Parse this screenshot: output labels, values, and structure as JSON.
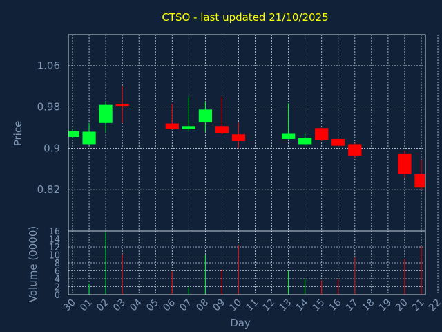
{
  "chart_data": {
    "type": "candlestick",
    "title": "CTSO - last updated 21/10/2025",
    "xlabel": "Day",
    "ylabel": "Price",
    "volume_label": "Volume (0000)",
    "x_tick_labels": [
      "30",
      "01",
      "02",
      "03",
      "04",
      "05",
      "06",
      "07",
      "08",
      "09",
      "10",
      "11",
      "12",
      "13",
      "14",
      "15",
      "16",
      "17",
      "18",
      "19",
      "20",
      "21",
      "22"
    ],
    "price_ticks": [
      0.82,
      0.9,
      0.98,
      1.06
    ],
    "price_tick_labels": [
      "0.82",
      "0.9",
      "0.98",
      "1.06"
    ],
    "price_range": [
      0.74,
      1.12
    ],
    "volume_ticks": [
      0,
      2,
      4,
      6,
      8,
      10,
      12,
      14,
      16
    ],
    "volume_range": [
      0,
      16
    ],
    "grid": true,
    "up_color": "#00ff33",
    "down_color": "#ff0000",
    "candles": [
      {
        "day": "30",
        "open": 0.922,
        "high": 0.935,
        "low": 0.92,
        "close": 0.933,
        "volume": 0.0
      },
      {
        "day": "01",
        "open": 0.908,
        "high": 0.949,
        "low": 0.906,
        "close": 0.932,
        "volume": 2.8
      },
      {
        "day": "02",
        "open": 0.949,
        "high": 0.99,
        "low": 0.931,
        "close": 0.984,
        "volume": 15.6
      },
      {
        "day": "03",
        "open": 0.986,
        "high": 1.02,
        "low": 0.949,
        "close": 0.982,
        "volume": 10.2
      },
      {
        "day": "06",
        "open": 0.948,
        "high": 0.986,
        "low": 0.936,
        "close": 0.937,
        "volume": 5.8
      },
      {
        "day": "07",
        "open": 0.937,
        "high": 1.0,
        "low": 0.934,
        "close": 0.943,
        "volume": 1.9
      },
      {
        "day": "08",
        "open": 0.95,
        "high": 0.99,
        "low": 0.932,
        "close": 0.975,
        "volume": 10.1
      },
      {
        "day": "09",
        "open": 0.943,
        "high": 1.0,
        "low": 0.927,
        "close": 0.929,
        "volume": 6.3
      },
      {
        "day": "10",
        "open": 0.927,
        "high": 0.95,
        "low": 0.9,
        "close": 0.914,
        "volume": 12.5
      },
      {
        "day": "13",
        "open": 0.918,
        "high": 0.987,
        "low": 0.917,
        "close": 0.928,
        "volume": 6.1
      },
      {
        "day": "14",
        "open": 0.908,
        "high": 0.928,
        "low": 0.907,
        "close": 0.92,
        "volume": 4.0
      },
      {
        "day": "15",
        "open": 0.939,
        "high": 0.94,
        "low": 0.914,
        "close": 0.916,
        "volume": 3.6
      },
      {
        "day": "16",
        "open": 0.918,
        "high": 0.919,
        "low": 0.905,
        "close": 0.905,
        "volume": 3.9
      },
      {
        "day": "17",
        "open": 0.908,
        "high": 0.91,
        "low": 0.881,
        "close": 0.886,
        "volume": 9.4
      },
      {
        "day": "20",
        "open": 0.89,
        "high": 0.895,
        "low": 0.843,
        "close": 0.85,
        "volume": 9.0
      },
      {
        "day": "21",
        "open": 0.85,
        "high": 0.877,
        "low": 0.82,
        "close": 0.824,
        "volume": 12.2
      }
    ]
  }
}
